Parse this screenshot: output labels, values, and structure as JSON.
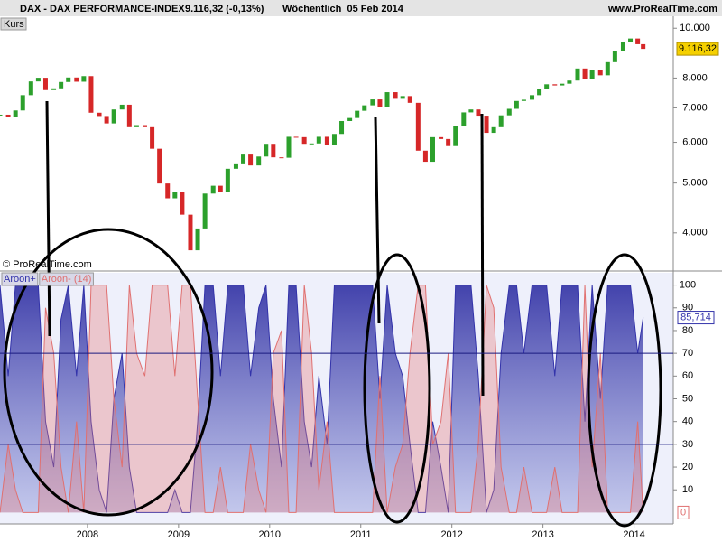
{
  "header": {
    "title": "DAX - DAX PERFORMANCE-INDEX",
    "quote": "9.116,32 (-0,13%)",
    "period": "Wöchentlich  05 Feb 2014",
    "site": "www.ProRealTime.com"
  },
  "chart_data": [
    {
      "type": "candle",
      "panel_label": "Kurs",
      "copyright": "© ProRealTime.com",
      "log_scale": true,
      "x": [
        2007.04,
        2007.13,
        2007.21,
        2007.29,
        2007.38,
        2007.46,
        2007.54,
        2007.63,
        2007.71,
        2007.79,
        2007.88,
        2007.96,
        2008.04,
        2008.13,
        2008.21,
        2008.29,
        2008.38,
        2008.46,
        2008.54,
        2008.63,
        2008.71,
        2008.79,
        2008.88,
        2008.96,
        2009.04,
        2009.13,
        2009.21,
        2009.29,
        2009.38,
        2009.46,
        2009.54,
        2009.63,
        2009.71,
        2009.79,
        2009.88,
        2009.96,
        2010.04,
        2010.13,
        2010.21,
        2010.29,
        2010.38,
        2010.46,
        2010.54,
        2010.63,
        2010.71,
        2010.79,
        2010.88,
        2010.96,
        2011.04,
        2011.13,
        2011.21,
        2011.29,
        2011.38,
        2011.46,
        2011.54,
        2011.63,
        2011.71,
        2011.79,
        2011.88,
        2011.96,
        2012.04,
        2012.13,
        2012.21,
        2012.29,
        2012.38,
        2012.46,
        2012.54,
        2012.63,
        2012.71,
        2012.79,
        2012.88,
        2012.96,
        2013.04,
        2013.13,
        2013.21,
        2013.29,
        2013.38,
        2013.46,
        2013.54,
        2013.63,
        2013.71,
        2013.79,
        2013.88,
        2013.96,
        2014.04,
        2014.1
      ],
      "series": [
        {
          "name": "DAX",
          "up_color": "#2ca02c",
          "down_color": "#d62728",
          "values": [
            6790,
            6710,
            6920,
            7410,
            7880,
            8010,
            7580,
            7640,
            7860,
            8020,
            7870,
            8070,
            6850,
            6750,
            6530,
            6950,
            7100,
            6420,
            6480,
            6420,
            5830,
            4990,
            4670,
            4810,
            4340,
            3700,
            4080,
            4770,
            4940,
            4810,
            5330,
            5460,
            5680,
            5410,
            5630,
            5960,
            5610,
            5600,
            6150,
            6140,
            5960,
            5970,
            6150,
            5930,
            6230,
            6600,
            6690,
            6910,
            7080,
            7270,
            7040,
            7510,
            7290,
            7380,
            7160,
            5780,
            5500,
            6140,
            6090,
            5900,
            6460,
            6860,
            6950,
            6760,
            6260,
            6420,
            6770,
            6970,
            7220,
            7260,
            7410,
            7610,
            7780,
            7740,
            7800,
            7910,
            8350,
            7960,
            8280,
            8100,
            8590,
            9030,
            9410,
            9550,
            9310,
            9116.32
          ],
          "last_value": {
            "value": 9116.32,
            "label": "9.116,32"
          }
        }
      ],
      "xlim": [
        2007.04,
        2014.45
      ],
      "ylim": [
        3400,
        10550
      ],
      "yticks": [
        {
          "value": 10000,
          "label": "10.000"
        },
        {
          "value": 8000,
          "label": "8.000"
        },
        {
          "value": 7000,
          "label": "7.000"
        },
        {
          "value": 6000,
          "label": "6.000"
        },
        {
          "value": 5000,
          "label": "5.000"
        },
        {
          "value": 4000,
          "label": "4.000"
        }
      ]
    },
    {
      "type": "area",
      "x": [
        2007.04,
        2007.13,
        2007.21,
        2007.29,
        2007.38,
        2007.46,
        2007.54,
        2007.63,
        2007.71,
        2007.79,
        2007.88,
        2007.96,
        2008.04,
        2008.13,
        2008.21,
        2008.29,
        2008.38,
        2008.46,
        2008.54,
        2008.63,
        2008.71,
        2008.79,
        2008.88,
        2008.96,
        2009.04,
        2009.13,
        2009.21,
        2009.29,
        2009.38,
        2009.46,
        2009.54,
        2009.63,
        2009.71,
        2009.79,
        2009.88,
        2009.96,
        2010.04,
        2010.13,
        2010.21,
        2010.29,
        2010.38,
        2010.46,
        2010.54,
        2010.63,
        2010.71,
        2010.79,
        2010.88,
        2010.96,
        2011.04,
        2011.13,
        2011.21,
        2011.29,
        2011.38,
        2011.46,
        2011.54,
        2011.63,
        2011.71,
        2011.79,
        2011.88,
        2011.96,
        2012.04,
        2012.13,
        2012.21,
        2012.29,
        2012.38,
        2012.46,
        2012.54,
        2012.63,
        2012.71,
        2012.79,
        2012.88,
        2012.96,
        2013.04,
        2013.13,
        2013.21,
        2013.29,
        2013.38,
        2013.46,
        2013.54,
        2013.63,
        2013.71,
        2013.79,
        2013.88,
        2013.96,
        2014.04,
        2014.1
      ],
      "series": [
        {
          "name": "Aroon+",
          "color": "#3333aa",
          "values": [
            100,
            60,
            100,
            100,
            100,
            100,
            40,
            20,
            85,
            100,
            60,
            100,
            40,
            10,
            0,
            50,
            70,
            20,
            0,
            0,
            0,
            0,
            0,
            10,
            0,
            0,
            40,
            100,
            100,
            60,
            100,
            100,
            100,
            60,
            90,
            100,
            50,
            20,
            100,
            100,
            40,
            20,
            60,
            30,
            100,
            100,
            100,
            100,
            100,
            100,
            50,
            100,
            70,
            60,
            30,
            0,
            0,
            40,
            20,
            0,
            100,
            100,
            100,
            60,
            0,
            10,
            70,
            100,
            100,
            70,
            100,
            100,
            100,
            60,
            100,
            100,
            100,
            40,
            100,
            50,
            100,
            100,
            100,
            100,
            70,
            85.714
          ],
          "last_value": {
            "value": 85.714,
            "label": "85,714"
          }
        },
        {
          "name": "Aroon- (14)",
          "color": "#e07070",
          "values": [
            0,
            30,
            10,
            0,
            0,
            0,
            90,
            70,
            20,
            0,
            40,
            0,
            100,
            100,
            100,
            50,
            20,
            100,
            70,
            60,
            100,
            100,
            100,
            60,
            100,
            100,
            50,
            0,
            0,
            20,
            0,
            0,
            0,
            30,
            10,
            0,
            70,
            80,
            0,
            0,
            100,
            70,
            10,
            40,
            0,
            0,
            0,
            0,
            0,
            0,
            60,
            0,
            20,
            30,
            70,
            100,
            100,
            30,
            40,
            70,
            0,
            0,
            0,
            30,
            100,
            90,
            20,
            0,
            0,
            20,
            0,
            0,
            0,
            20,
            0,
            0,
            0,
            100,
            20,
            70,
            0,
            0,
            0,
            0,
            40,
            0
          ],
          "last_value": 0
        }
      ],
      "levels": [
        70,
        30
      ],
      "xlim": [
        2007.04,
        2014.45
      ],
      "ylim": [
        -5,
        105
      ],
      "yticks": [
        10,
        20,
        30,
        40,
        50,
        60,
        70,
        80,
        90,
        100
      ],
      "xticks": [
        2008,
        2009,
        2010,
        2011,
        2012,
        2013,
        2014
      ]
    }
  ]
}
